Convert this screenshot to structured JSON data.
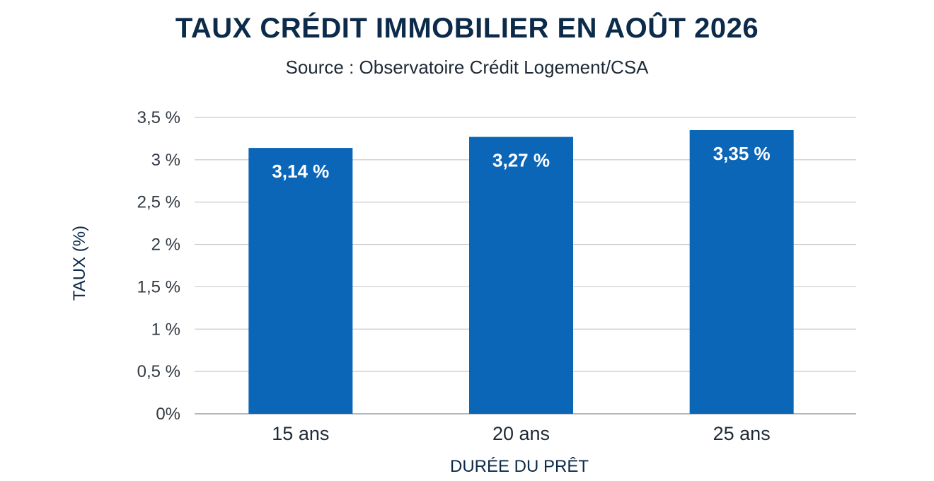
{
  "chart_data": {
    "type": "bar",
    "title": "TAUX CRÉDIT IMMOBILIER EN AOÛT 2026",
    "subtitle": "Source : Observatoire Crédit Logement/CSA",
    "xlabel": "DURÉE DU PRÊT",
    "ylabel": "TAUX (%)",
    "categories": [
      "15 ans",
      "20 ans",
      "25 ans"
    ],
    "values": [
      3.14,
      3.27,
      3.35
    ],
    "data_labels": [
      "3,14 %",
      "3,27 %",
      "3,35 %"
    ],
    "ylim": [
      0,
      3.5
    ],
    "yticks": [
      0,
      0.5,
      1,
      1.5,
      2,
      2.5,
      3,
      3.5
    ],
    "ytick_labels": [
      "0%",
      "0,5 %",
      "1 %",
      "1,5 %",
      "2 %",
      "2,5 %",
      "3 %",
      "3,5 %"
    ],
    "grid": true,
    "bar_color": "#0b66b8"
  }
}
